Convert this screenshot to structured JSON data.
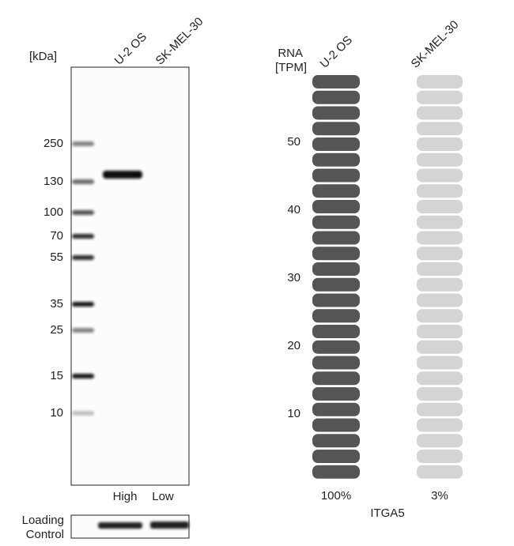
{
  "blot": {
    "unit_label": "[kDa]",
    "lanes": [
      "U-2 OS",
      "SK-MEL-30"
    ],
    "markers": [
      "250",
      "130",
      "100",
      "70",
      "55",
      "35",
      "25",
      "15",
      "10"
    ],
    "levels": [
      "High",
      "Low"
    ],
    "loading_control": [
      "Loading",
      "Control"
    ]
  },
  "rna": {
    "axis_label": [
      "RNA",
      "[TPM]"
    ],
    "lanes": [
      "U-2 OS",
      "SK-MEL-30"
    ],
    "ticks": [
      "10",
      "20",
      "30",
      "40",
      "50"
    ],
    "percentages": [
      "100%",
      "3%"
    ],
    "gene": "ITGA5"
  }
}
